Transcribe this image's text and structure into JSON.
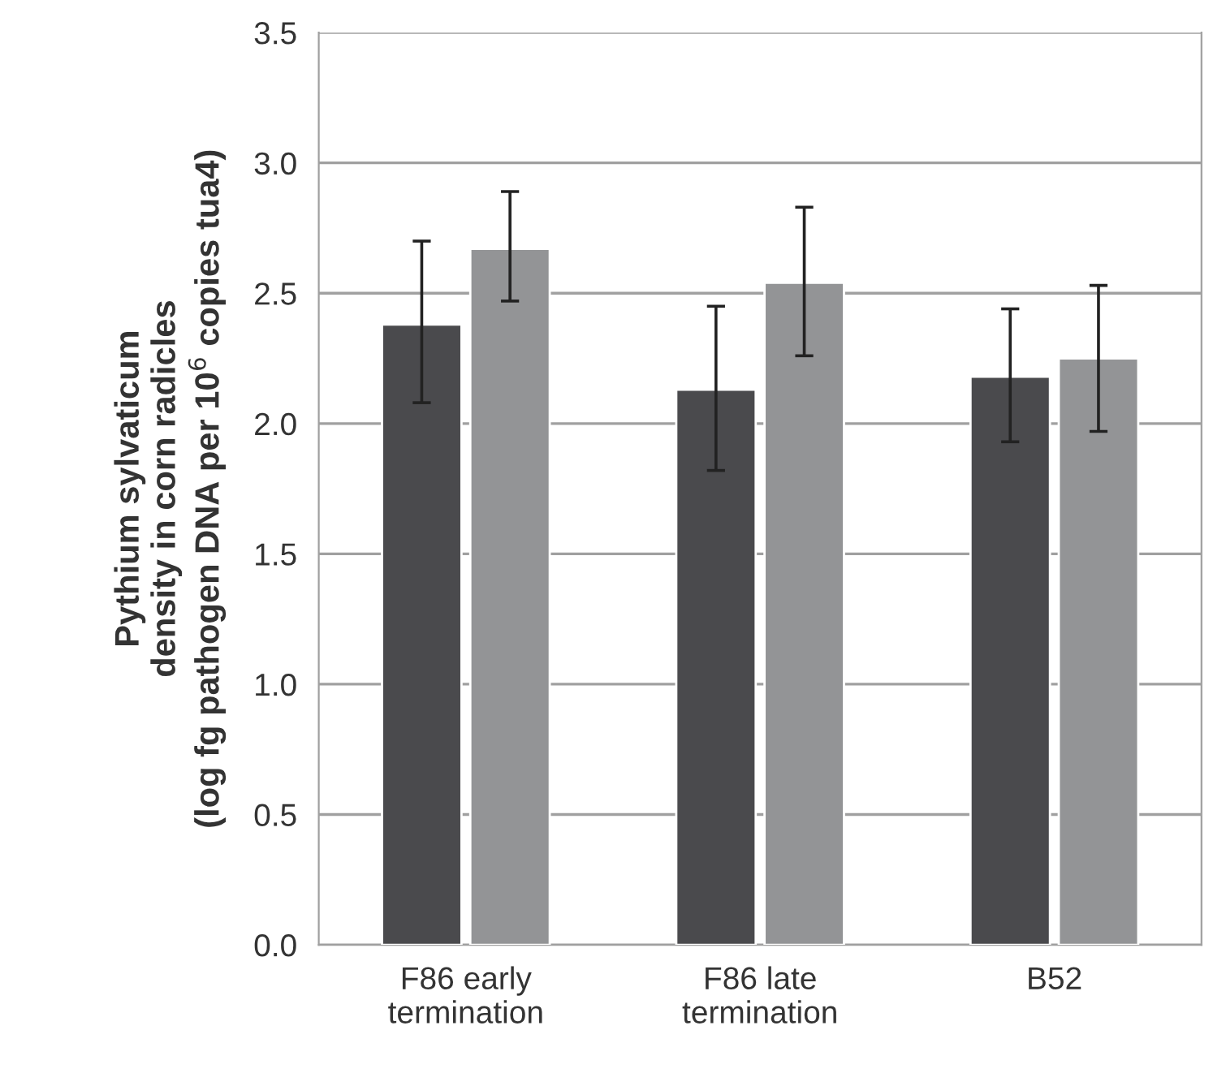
{
  "chart_data": {
    "type": "bar",
    "ylabel": "Pythium sylvaticum\ndensity in corn radicles\n(log fg pathogen DNA per 10$^{6}$ copies tua4)",
    "categories": [
      "F86 early\ntermination",
      "F86 late\ntermination",
      "B52"
    ],
    "series": [
      {
        "color": "#4a4a4d",
        "values": [
          2.38,
          2.13,
          2.18
        ],
        "errors": [
          [
            2.08,
            2.7
          ],
          [
            1.82,
            2.45
          ],
          [
            1.93,
            2.44
          ]
        ]
      },
      {
        "color": "#939496",
        "values": [
          2.67,
          2.54,
          2.25
        ],
        "errors": [
          [
            2.47,
            2.89
          ],
          [
            2.26,
            2.83
          ],
          [
            1.97,
            2.53
          ]
        ]
      }
    ],
    "ylim": [
      0,
      3.5
    ],
    "yticks": [
      {
        "value": 0,
        "label": "0.0"
      },
      0.5,
      {
        "value": 1,
        "label": "1.0"
      },
      1.5,
      {
        "value": 2,
        "label": "2.0"
      },
      2.5,
      {
        "value": 3,
        "label": "3.0"
      },
      3.5
    ],
    "grid": "y",
    "legend": false
  }
}
